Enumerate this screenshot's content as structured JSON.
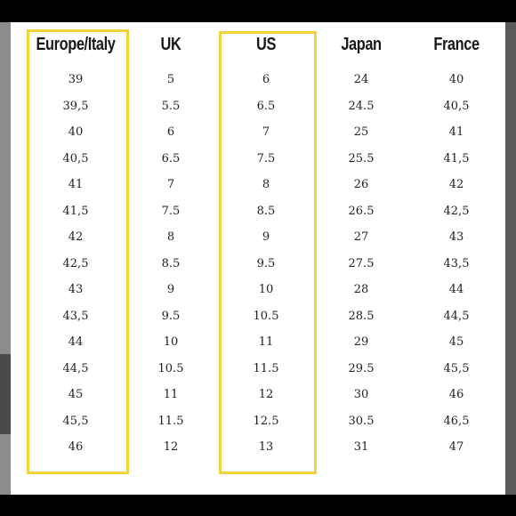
{
  "table": {
    "columns": [
      {
        "header": "Europe/Italy",
        "values": [
          "39",
          "39,5",
          "40",
          "40,5",
          "41",
          "41,5",
          "42",
          "42,5",
          "43",
          "43,5",
          "44",
          "44,5",
          "45",
          "45,5",
          "46"
        ]
      },
      {
        "header": "UK",
        "values": [
          "5",
          "5.5",
          "6",
          "6.5",
          "7",
          "7.5",
          "8",
          "8.5",
          "9",
          "9.5",
          "10",
          "10.5",
          "11",
          "11.5",
          "12"
        ]
      },
      {
        "header": "US",
        "values": [
          "6",
          "6.5",
          "7",
          "7.5",
          "8",
          "8.5",
          "9",
          "9.5",
          "10",
          "10.5",
          "11",
          "11.5",
          "12",
          "12.5",
          "13"
        ]
      },
      {
        "header": "Japan",
        "values": [
          "24",
          "24.5",
          "25",
          "25.5",
          "26",
          "26.5",
          "27",
          "27.5",
          "28",
          "28.5",
          "29",
          "29.5",
          "30",
          "30.5",
          "31"
        ]
      },
      {
        "header": "France",
        "values": [
          "40",
          "40,5",
          "41",
          "41,5",
          "42",
          "42,5",
          "43",
          "43,5",
          "44",
          "44,5",
          "45",
          "45,5",
          "46",
          "46,5",
          "47"
        ]
      }
    ],
    "highlighted_columns": [
      "Europe/Italy",
      "US"
    ],
    "highlight_color": "#f2d33b"
  }
}
